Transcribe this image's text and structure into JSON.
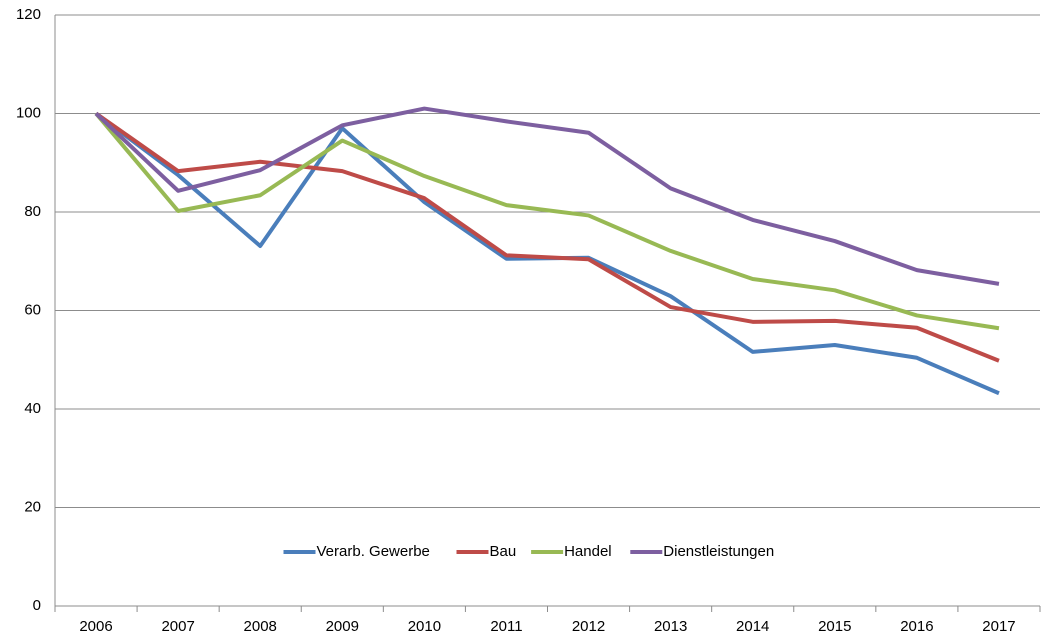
{
  "chart_data": {
    "type": "line",
    "categories": [
      "2006",
      "2007",
      "2008",
      "2009",
      "2010",
      "2011",
      "2012",
      "2013",
      "2014",
      "2015",
      "2016",
      "2017"
    ],
    "series": [
      {
        "name": "Verarb. Gewerbe",
        "color": "#4a7ebb",
        "values": [
          100,
          87.5,
          73.1,
          97,
          82,
          70.5,
          70.7,
          62.9,
          51.6,
          53,
          50.4,
          43.2
        ]
      },
      {
        "name": "Bau",
        "color": "#be4b48",
        "values": [
          100,
          88.3,
          90.2,
          88.3,
          82.8,
          71.2,
          70.4,
          60.7,
          57.7,
          57.9,
          56.5,
          49.8
        ]
      },
      {
        "name": "Handel",
        "color": "#98b954",
        "values": [
          100,
          80.2,
          83.4,
          94.5,
          87.3,
          81.4,
          79.3,
          72.1,
          66.4,
          64.1,
          59,
          56.4
        ]
      },
      {
        "name": "Dienstleistungen",
        "color": "#7d5fa0",
        "values": [
          100,
          84.3,
          88.5,
          97.6,
          101,
          98.4,
          96.1,
          84.8,
          78.4,
          74.1,
          68.2,
          65.4
        ]
      }
    ],
    "ylim": [
      0,
      120
    ],
    "yticks": [
      0,
      20,
      40,
      60,
      80,
      100,
      120
    ],
    "grid": true,
    "legend": "bottom"
  }
}
